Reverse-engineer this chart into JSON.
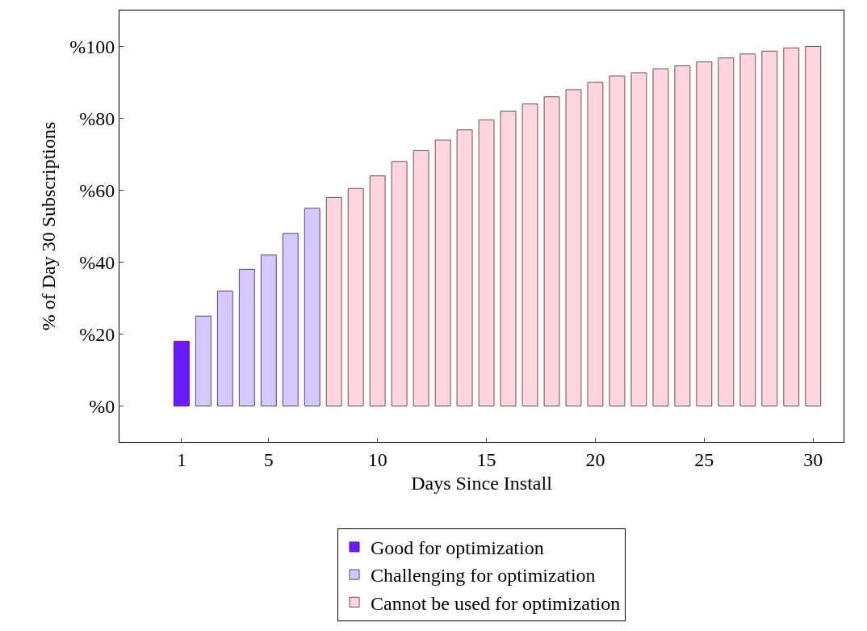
{
  "chart_data": {
    "type": "bar",
    "xlabel": "Days Since Install",
    "ylabel": "% of Day 30 Subscriptions",
    "xlim": [
      -1.85,
      31.4
    ],
    "xticks": [
      1,
      5,
      10,
      15,
      20,
      25,
      30
    ],
    "ylim": [
      -10,
      110
    ],
    "yticks": [
      {
        "value": 0,
        "label": "%0"
      },
      {
        "value": 20,
        "label": "%20"
      },
      {
        "value": 40,
        "label": "%40"
      },
      {
        "value": 60,
        "label": "%60"
      },
      {
        "value": 80,
        "label": "%80"
      },
      {
        "value": 100,
        "label": "%100"
      }
    ],
    "grid": false,
    "legend": "bottom",
    "series": [
      {
        "name": "Good for optimization",
        "color": "#6a1bff",
        "x": [
          1
        ],
        "values": [
          18
        ]
      },
      {
        "name": "Challenging for optimization",
        "color": "#d4c8ff",
        "x": [
          2,
          3,
          4,
          5,
          6,
          7
        ],
        "values": [
          25,
          32,
          38,
          42,
          48,
          55
        ]
      },
      {
        "name": "Cannot be used for optimization",
        "color": "#ffd6e0",
        "x": [
          8,
          9,
          10,
          11,
          12,
          13,
          14,
          15,
          16,
          17,
          18,
          19,
          20,
          21,
          22,
          23,
          24,
          25,
          26,
          27,
          28,
          29,
          30
        ],
        "values": [
          58,
          60.5,
          64,
          68,
          71,
          74,
          76.8,
          79.6,
          82,
          84,
          86,
          88,
          90,
          91.8,
          92.7,
          93.8,
          94.6,
          95.7,
          96.8,
          97.9,
          98.7,
          99.6,
          100
        ]
      }
    ]
  }
}
